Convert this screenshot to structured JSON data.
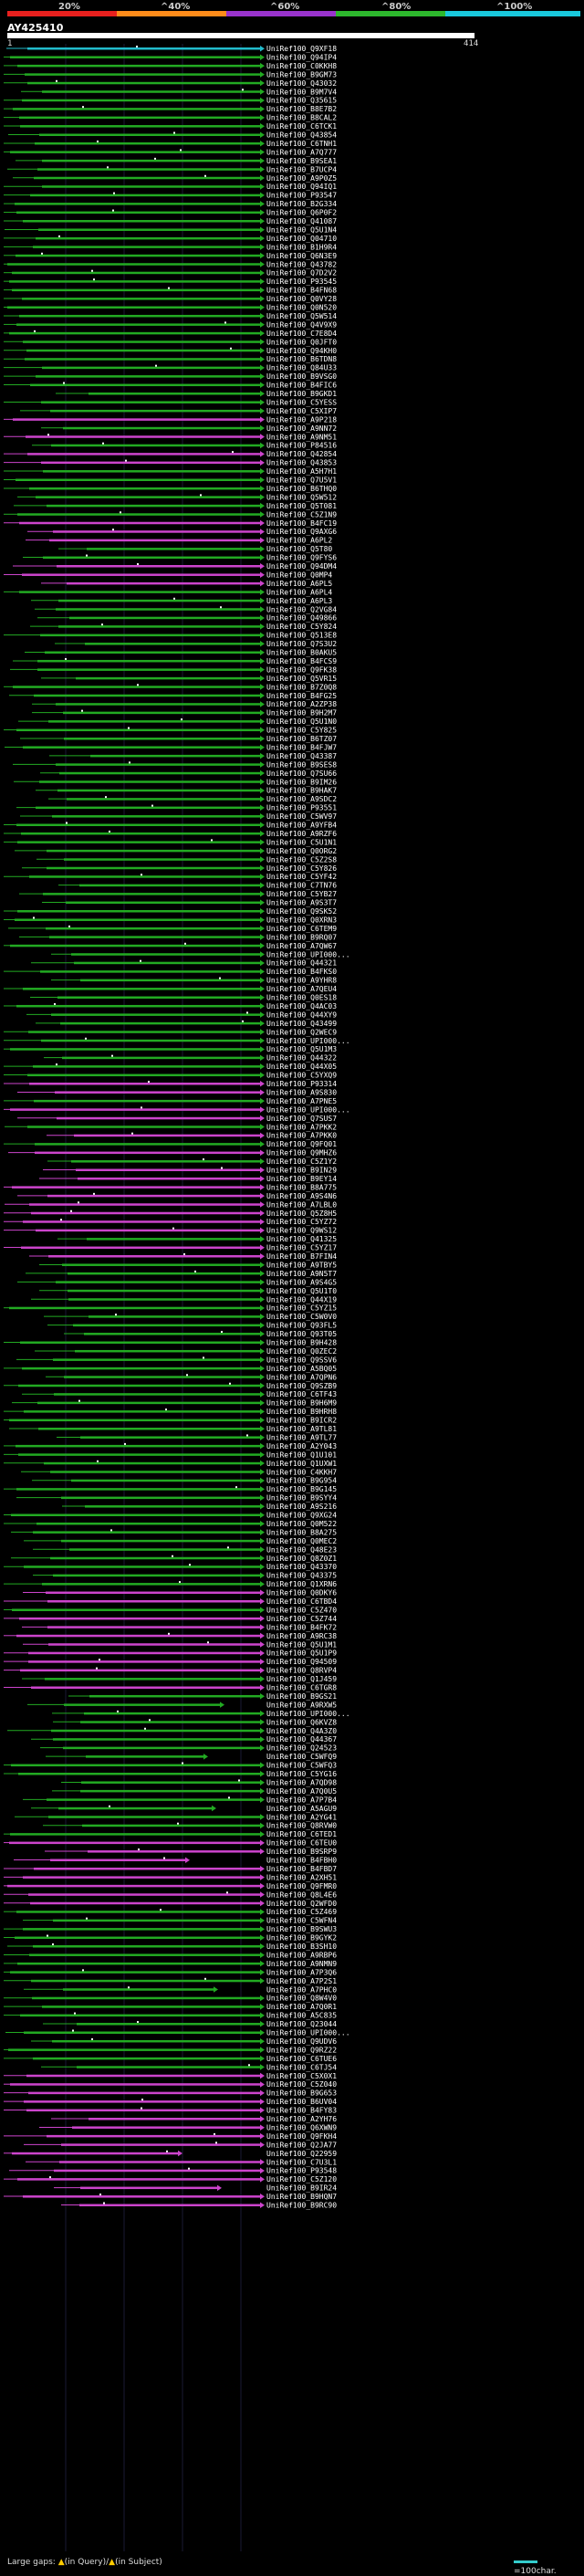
{
  "scale": {
    "ticks": [
      "20%",
      "^40%",
      "^60%",
      "^80%",
      "^100%"
    ],
    "colors": [
      "#e8201e",
      "#ff8c1a",
      "#9933cc",
      "#2db82d",
      "#19c8dc"
    ]
  },
  "query": {
    "title": "AY425410",
    "start": "1",
    "end": "414"
  },
  "hits": [
    "UniRef100_Q9XF18",
    "UniRef100_Q94IP4",
    "UniRef100_C0KKH8",
    "UniRef100_B9GM73",
    "UniRef100_Q43032",
    "UniRef100_B9M7V4",
    "UniRef100_Q35615",
    "UniRef100_B8E7B2",
    "UniRef100_B8CAL2",
    "UniRef100_C6TCK1",
    "UniRef100_Q43854",
    "UniRef100_C6TNH1",
    "UniRef100_A7Q777",
    "UniRef100_B9SEA1",
    "UniRef100_B7UCP4",
    "UniRef100_A9P0Z5",
    "UniRef100_Q94IQ1",
    "UniRef100_P93547",
    "UniRef100_B2G334",
    "UniRef100_Q6P0F2",
    "UniRef100_Q41087",
    "UniRef100_Q5U1N4",
    "UniRef100_Q04710",
    "UniRef100_B1H9R4",
    "UniRef100_Q6N3E9",
    "UniRef100_Q43782",
    "UniRef100_Q7D2V2",
    "UniRef100_P93545",
    "UniRef100_B4FN68",
    "UniRef100_Q0VY28",
    "UniRef100_Q0N520",
    "UniRef100_Q5W514",
    "UniRef100_Q4V9X9",
    "UniRef100_C7E8D4",
    "UniRef100_Q0JFT0",
    "UniRef100_Q94KH0",
    "UniRef100_B6TDN8",
    "UniRef100_Q84U33",
    "UniRef100_B9VSG0",
    "UniRef100_B4FIC6",
    "UniRef100_B9GKD1",
    "UniRef100_C5YESS",
    "UniRef100_C5XIP7",
    "UniRef100_A9P218",
    "UniRef100_A9NN72",
    "UniRef100_A9NM51",
    "UniRef100_P84516",
    "UniRef100_Q42854",
    "UniRef100_Q43853",
    "UniRef100_A5H7H1",
    "UniRef100_Q7U5V1",
    "UniRef100_B6THQ0",
    "UniRef100_Q5W512",
    "UniRef100_Q5T081",
    "UniRef100_C5Z1N9",
    "UniRef100_B4FC19",
    "UniRef100_Q9AXG6",
    "UniRef100_A6PL2",
    "UniRef100_Q5T80",
    "UniRef100_Q9FYS6",
    "UniRef100_Q94DM4",
    "UniRef100_Q0MP4",
    "UniRef100_A6PL5",
    "UniRef100_A6PL4",
    "UniRef100_A6PL3",
    "UniRef100_Q2VG84",
    "UniRef100_Q49866",
    "UniRef100_C5Y824",
    "UniRef100_Q513E8",
    "UniRef100_Q7S3U2",
    "UniRef100_B0AKU5",
    "UniRef100_B4FCS9",
    "UniRef100_Q9FK38",
    "UniRef100_Q5VR15",
    "UniRef100_B7Z0Q8",
    "UniRef100_B4FG25",
    "UniRef100_A2ZP38",
    "UniRef100_B9H2M7",
    "UniRef100_Q5U1N0",
    "UniRef100_C5Y825",
    "UniRef100_B6TZ07",
    "UniRef100_B4FJW7",
    "UniRef100_Q43387",
    "UniRef100_B9SES8",
    "UniRef100_Q7SU66",
    "UniRef100_B9IM26",
    "UniRef100_B9HAK7",
    "UniRef100_A9SDC2",
    "UniRef100_P93551",
    "UniRef100_C5WV97",
    "UniRef100_A9YFB4",
    "UniRef100_A9RZF6",
    "UniRef100_C5U1N1",
    "UniRef100_Q0ORG2",
    "UniRef100_C5Z2S8",
    "UniRef100_C5Y826",
    "UniRef100_C5YF42",
    "UniRef100_C7TN76",
    "UniRef100_C5YB27",
    "UniRef100_A9S3T7",
    "UniRef100_Q9SK52",
    "UniRef100_Q0XRN3",
    "UniRef100_C6TEM9",
    "UniRef100_B9RQ07",
    "UniRef100_A7QW67",
    "UniRef100_UPI000...",
    "UniRef100_Q44321",
    "UniRef100_B4FKS0",
    "UniRef100_A9YHR8",
    "UniRef100_A7QEU4",
    "UniRef100_Q0ES18",
    "UniRef100_Q4AC03",
    "UniRef100_Q44XY9",
    "UniRef100_Q43499",
    "UniRef100_Q2WEC9",
    "UniRef100_UPI000...",
    "UniRef100_Q5U1M3",
    "UniRef100_Q44322",
    "UniRef100_Q44X05",
    "UniRef100_C5YXQ9",
    "UniRef100_P93314",
    "UniRef100_A9S830",
    "UniRef100_A7PNE5",
    "UniRef100_UPI000...",
    "UniRef100_Q7SUS7",
    "UniRef100_A7PKK2",
    "UniRef100_A7PKK0",
    "UniRef100_Q9FQ01",
    "UniRef100_Q9MHZ6",
    "UniRef100_C5Z1Y2",
    "UniRef100_B9IN29",
    "UniRef100_B9EY14",
    "UniRef100_B8A775",
    "UniRef100_A9S4N6",
    "UniRef100_A7LBL0",
    "UniRef100_Q5Z8H5",
    "UniRef100_C5YZ72",
    "UniRef100_Q9WS12",
    "UniRef100_Q41325",
    "UniRef100_C5YZ17",
    "UniRef100_B7FIN4",
    "UniRef100_A9TBY5",
    "UniRef100_A9N5T7",
    "UniRef100_A9S4G5",
    "UniRef100_Q5U1T0",
    "UniRef100_Q44X19",
    "UniRef100_C5YZ15",
    "UniRef100_C5W0V0",
    "UniRef100_Q93FL5",
    "UniRef100_Q93T05",
    "UniRef100_B9H428",
    "UniRef100_Q0ZEC2",
    "UniRef100_Q9SSV6",
    "UniRef100_A5BQ05",
    "UniRef100_A7QPN6",
    "UniRef100_Q9SZB9",
    "UniRef100_C6TF43",
    "UniRef100_B9H6M9",
    "UniRef100_B9HRH8",
    "UniRef100_B9ICR2",
    "UniRef100_A9TL81",
    "UniRef100_A9TL77",
    "UniRef100_A2Y043",
    "UniRef100_Q1U101",
    "UniRef100_Q1UXW1",
    "UniRef100_C4KKH7",
    "UniRef100_B9G954",
    "UniRef100_B9G145",
    "UniRef100_B9SYY4",
    "UniRef100_A9S216",
    "UniRef100_Q9XG24",
    "UniRef100_Q0M522",
    "UniRef100_B8A275",
    "UniRef100_Q0MEC2",
    "UniRef100_Q48E23",
    "UniRef100_Q8Z0Z1",
    "UniRef100_Q43370",
    "UniRef100_Q43375",
    "UniRef100_Q1XRN6",
    "UniRef100_Q0DKY6",
    "UniRef100_C6TBD4",
    "UniRef100_C5Z470",
    "UniRef100_C5Z744",
    "UniRef100_B4FK72",
    "UniRef100_A9RC38",
    "UniRef100_Q5U1M1",
    "UniRef100_Q5U1P9",
    "UniRef100_Q94509",
    "UniRef100_Q8RVP4",
    "UniRef100_Q1J459",
    "UniRef100_C6TGR8",
    "UniRef100_B9GS21",
    "UniRef100_A9RXW5",
    "UniRef100_UPI000...",
    "UniRef100_Q6KVZ8",
    "UniRef100_Q4A3Z0",
    "UniRef100_Q44367",
    "UniRef100_Q24523",
    "UniRef100_C5WFQ9",
    "UniRef100_C5WFQ3",
    "UniRef100_C5YG16",
    "UniRef100_A7QD98",
    "UniRef100_A7Q0U5",
    "UniRef100_A7P7B4",
    "UniRef100_A5AGU9",
    "UniRef100_A2YG41",
    "UniRef100_Q8RVW0",
    "UniRef100_C6TED1",
    "UniRef100_C6TEU0",
    "UniRef100_B9SRP9",
    "UniRef100_B4FBH0",
    "UniRef100_B4FBD7",
    "UniRef100_A2XH51",
    "UniRef100_Q9FMR0",
    "UniRef100_Q8L4E6",
    "UniRef100_Q2WFD0",
    "UniRef100_C5Z469",
    "UniRef100_C5WFN4",
    "UniRef100_B9SWU3",
    "UniRef100_B9GYK2",
    "UniRef100_B3SH10",
    "UniRef100_A9RBP6",
    "UniRef100_A9NMN9",
    "UniRef100_A7P3Q6",
    "UniRef100_A7P2S1",
    "UniRef100_A7PHC0",
    "UniRef100_Q8W4V0",
    "UniRef100_A7Q0R1",
    "UniRef100_A5C835",
    "UniRef100_Q23044",
    "UniRef100_UPI000...",
    "UniRef100_Q9UDV6",
    "UniRef100_Q9RZ22",
    "UniRef100_C6TUE6",
    "UniRef100_C6TJ54",
    "UniRef100_C5X0X1",
    "UniRef100_C5Z040",
    "UniRef100_B9G653",
    "UniRef100_B6UV04",
    "UniRef100_B4FY83",
    "UniRef100_A2YH76",
    "UniRef100_Q6XWN9",
    "UniRef100_Q9FKH4",
    "UniRef100_Q2JA77",
    "UniRef100_Q22959",
    "UniRef100_C7U3L1",
    "UniRef100_P93548",
    "UniRef100_C5Z120",
    "UniRef100_B9IR24",
    "UniRef100_B9HQN7",
    "UniRef100_B9RC90"
  ],
  "footer": {
    "gaps_label": "Large gaps:",
    "gaps_query": "(in Query)",
    "gaps_separator": "/",
    "gaps_subject": "(in Subject)",
    "scale_label": "=100char."
  },
  "style": {
    "green": "#22aa22",
    "magenta": "#cc44cc",
    "cyan": "#22bbcc"
  }
}
